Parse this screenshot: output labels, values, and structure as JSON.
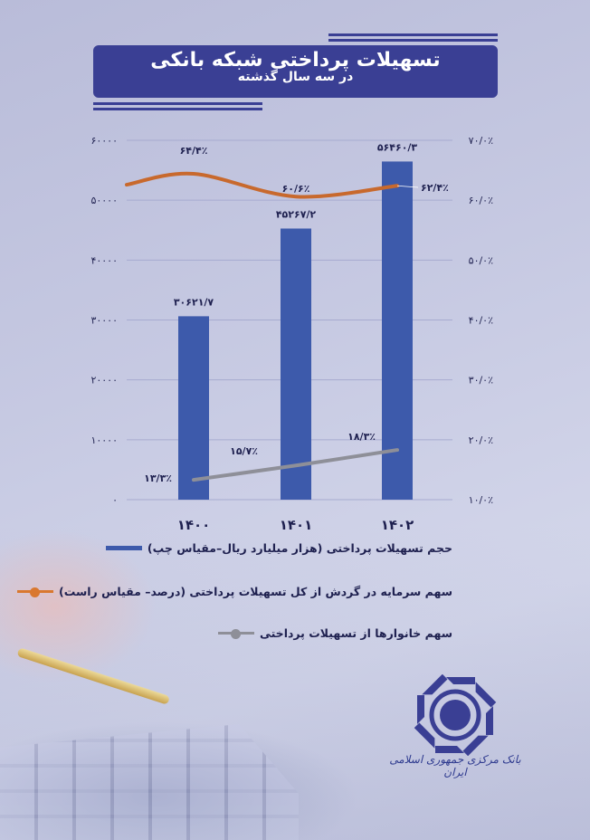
{
  "header": {
    "title": "تسهیلات پرداختی شبکه بانکی",
    "subtitle": "در سه سال گذشته"
  },
  "colors": {
    "title_box": "#3a3f94",
    "bar": "#3d5aab",
    "orange_line": "#c8692d",
    "gray_line": "#8e8f98",
    "text": "#1f2150"
  },
  "chart_data": {
    "type": "bar+line",
    "categories": [
      "۱۴۰۰",
      "۱۴۰۱",
      "۱۴۰۲"
    ],
    "left_axis": {
      "ylim": [
        0,
        60000
      ],
      "tick_labels": [
        "۰",
        "۱۰۰۰۰",
        "۲۰۰۰۰",
        "۳۰۰۰۰",
        "۴۰۰۰۰",
        "۵۰۰۰۰",
        "۶۰۰۰۰"
      ],
      "ticks": [
        0,
        10000,
        20000,
        30000,
        40000,
        50000,
        60000
      ]
    },
    "right_axis": {
      "ylim": [
        10,
        70
      ],
      "tick_labels": [
        "۱۰/۰٪",
        "۲۰/۰٪",
        "۳۰/۰٪",
        "۴۰/۰٪",
        "۵۰/۰٪",
        "۶۰/۰٪",
        "۷۰/۰٪"
      ],
      "ticks": [
        10,
        20,
        30,
        40,
        50,
        60,
        70
      ]
    },
    "grid": true,
    "legend_position": "bottom",
    "series": [
      {
        "name": "حجم تسهیلات پرداختی (هزار میلیارد ریال–مقیاس چپ)",
        "type": "bar",
        "axis": "left",
        "values": [
          30621.7,
          45267.2,
          56460.3
        ],
        "labels": [
          "۳۰۶۲۱/۷",
          "۴۵۲۶۷/۲",
          "۵۶۴۶۰/۳"
        ]
      },
      {
        "name": "سهم سرمایه در گردش از کل تسهیلات پرداختی (درصد– مقیاس راست)",
        "type": "line",
        "axis": "right",
        "values": [
          64.4,
          60.6,
          62.4
        ],
        "labels": [
          "۶۴/۴٪",
          "۶۰/۶٪",
          "۶۲/۴٪"
        ]
      },
      {
        "name": "سهم خانوارها از تسهیلات پرداختی",
        "type": "line",
        "axis": "right",
        "values": [
          13.3,
          15.7,
          18.3
        ],
        "labels": [
          "۱۳/۳٪",
          "۱۵/۷٪",
          "۱۸/۳٪"
        ]
      }
    ]
  },
  "logo": {
    "text": "بانک مرکزی جمهوری اسلامی ایران"
  }
}
